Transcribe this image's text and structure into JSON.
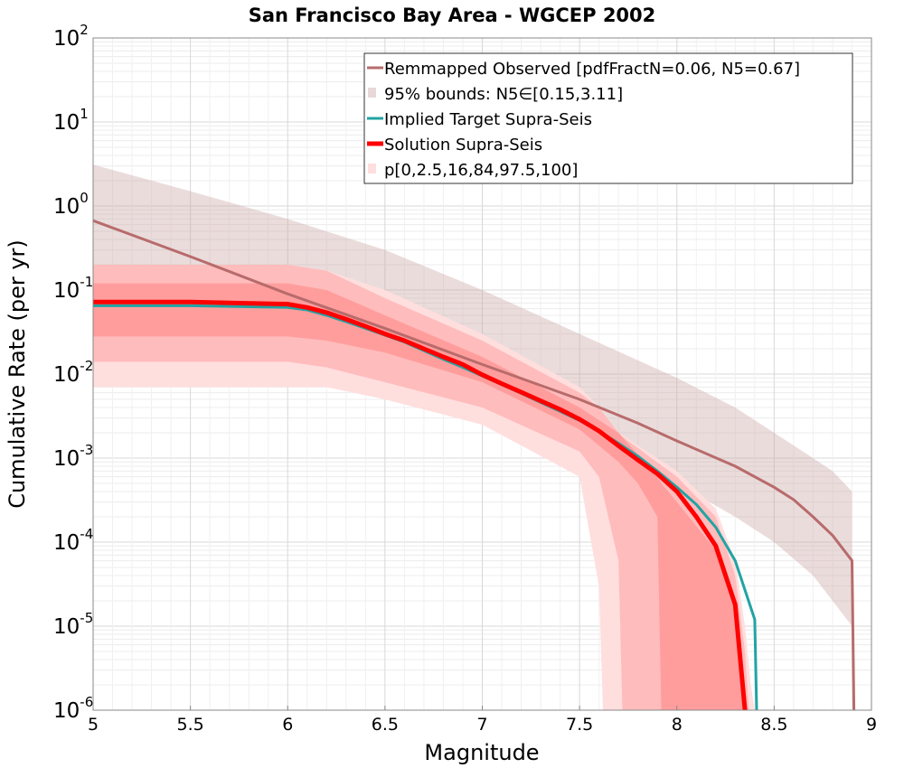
{
  "chart_data": {
    "type": "line",
    "title": "San Francisco Bay Area - WGCEP 2002",
    "xlabel": "Magnitude",
    "ylabel": "Cumulative Rate (per yr)",
    "xlim": [
      5,
      9
    ],
    "ylim": [
      1e-06,
      100
    ],
    "y_scale": "log",
    "grid": true,
    "legend_position": "top-right",
    "x_ticks": [
      "5",
      "5.5",
      "6",
      "6.5",
      "7",
      "7.5",
      "8",
      "8.5",
      "9"
    ],
    "y_ticks": [
      {
        "base": "10",
        "exp": "-6",
        "value": 1e-06
      },
      {
        "base": "10",
        "exp": "-5",
        "value": 1e-05
      },
      {
        "base": "10",
        "exp": "-4",
        "value": 0.0001
      },
      {
        "base": "10",
        "exp": "-3",
        "value": 0.001
      },
      {
        "base": "10",
        "exp": "-2",
        "value": 0.01
      },
      {
        "base": "10",
        "exp": "-1",
        "value": 0.1
      },
      {
        "base": "10",
        "exp": "0",
        "value": 1
      },
      {
        "base": "10",
        "exp": "1",
        "value": 10
      },
      {
        "base": "10",
        "exp": "2",
        "value": 100
      }
    ],
    "legend": [
      {
        "label": "Remmapped Observed [pdfFractN=0.06, N5=0.67]",
        "kind": "line",
        "color": "#b86b6b"
      },
      {
        "label": "95% bounds: N5∈[0.15,3.11]",
        "kind": "patch",
        "color": "#e8d8d8"
      },
      {
        "label": "Implied Target Supra-Seis",
        "kind": "line",
        "color": "#22a3a3"
      },
      {
        "label": "Solution Supra-Seis",
        "kind": "line",
        "color": "#ff0000"
      },
      {
        "label": "p[0,2.5,16,84,97.5,100]",
        "kind": "patch",
        "color": "#ffdede"
      }
    ],
    "bands": [
      {
        "name": "95% bounds: N5∈[0.15,3.11]",
        "color": "#cca8a8",
        "opacity": 0.4,
        "x": [
          5.0,
          5.5,
          6.0,
          6.5,
          7.0,
          7.5,
          8.0,
          8.3,
          8.5,
          8.7,
          8.8,
          8.9
        ],
        "upper": [
          3.11,
          1.5,
          0.7,
          0.3,
          0.1,
          0.03,
          0.009,
          0.004,
          0.002,
          0.001,
          0.0007,
          0.0004
        ],
        "lower": [
          0.15,
          0.06,
          0.03,
          0.012,
          0.005,
          0.0018,
          0.0005,
          0.0002,
          0.0001,
          4e-05,
          2e-05,
          1e-05
        ]
      },
      {
        "name": "p 0-100",
        "color": "#ffdede",
        "opacity": 1,
        "x": [
          5.0,
          5.5,
          6.0,
          6.2,
          6.5,
          7.0,
          7.5,
          7.6,
          7.62,
          7.7,
          8.0,
          8.2,
          8.3,
          8.35,
          8.38,
          8.4
        ],
        "upper": [
          0.2,
          0.2,
          0.2,
          0.17,
          0.1,
          0.03,
          0.007,
          0.004,
          0.0035,
          0.002,
          0.0007,
          0.00025,
          6e-05,
          1e-05,
          2e-06,
          1e-06
        ],
        "lower": [
          0.007,
          0.007,
          0.007,
          0.007,
          0.005,
          0.0025,
          0.0006,
          3e-05,
          1e-06,
          1e-06,
          1e-06,
          1e-06,
          1e-06,
          1e-06,
          1e-06,
          1e-06
        ]
      },
      {
        "name": "p 2.5-97.5",
        "color": "#ffbcbc",
        "opacity": 1,
        "x": [
          5.0,
          5.5,
          6.0,
          6.2,
          6.5,
          7.0,
          7.5,
          7.6,
          7.7,
          7.72,
          8.0,
          8.2,
          8.3,
          8.35,
          8.37
        ],
        "upper": [
          0.2,
          0.2,
          0.2,
          0.17,
          0.08,
          0.025,
          0.006,
          0.004,
          0.002,
          0.0018,
          0.0006,
          0.0002,
          4e-05,
          5e-06,
          1e-06
        ],
        "lower": [
          0.014,
          0.014,
          0.014,
          0.012,
          0.008,
          0.004,
          0.0012,
          0.0006,
          6e-05,
          1e-06,
          1e-06,
          1e-06,
          1e-06,
          1e-06,
          1e-06
        ]
      },
      {
        "name": "p 16-84",
        "color": "#ff9d9d",
        "opacity": 1,
        "x": [
          5.0,
          5.5,
          6.0,
          6.2,
          6.5,
          7.0,
          7.5,
          7.7,
          7.8,
          7.9,
          7.92,
          8.0,
          8.2,
          8.3,
          8.35
        ],
        "upper": [
          0.12,
          0.12,
          0.12,
          0.1,
          0.05,
          0.016,
          0.004,
          0.002,
          0.0011,
          0.0006,
          0.0005,
          0.0003,
          8e-05,
          1.5e-05,
          1e-06
        ],
        "lower": [
          0.028,
          0.028,
          0.028,
          0.025,
          0.018,
          0.008,
          0.0022,
          0.0009,
          0.0005,
          0.0002,
          1e-06,
          1e-06,
          1e-06,
          1e-06,
          1e-06
        ]
      }
    ],
    "series": [
      {
        "name": "Remmapped Observed [pdfFractN=0.06, N5=0.67]",
        "color": "#b86b6b",
        "width": 3,
        "x": [
          5.0,
          5.5,
          6.0,
          6.5,
          7.0,
          7.5,
          7.8,
          8.0,
          8.3,
          8.5,
          8.6,
          8.7,
          8.8,
          8.9,
          8.91
        ],
        "y": [
          0.67,
          0.25,
          0.09,
          0.035,
          0.013,
          0.005,
          0.0026,
          0.0016,
          0.0008,
          0.00045,
          0.00032,
          0.0002,
          0.00012,
          6e-05,
          1e-06
        ]
      },
      {
        "name": "Implied Target Supra-Seis",
        "color": "#22a3a3",
        "width": 3,
        "x": [
          5.0,
          5.5,
          6.0,
          6.1,
          6.2,
          6.3,
          6.4,
          6.5,
          6.6,
          6.7,
          6.8,
          6.9,
          7.0,
          7.1,
          7.2,
          7.3,
          7.4,
          7.5,
          7.6,
          7.7,
          7.8,
          7.9,
          8.0,
          8.1,
          8.2,
          8.3,
          8.4,
          8.41
        ],
        "y": [
          0.065,
          0.065,
          0.062,
          0.058,
          0.05,
          0.042,
          0.035,
          0.029,
          0.024,
          0.019,
          0.015,
          0.012,
          0.0095,
          0.0075,
          0.0059,
          0.0046,
          0.0036,
          0.0028,
          0.0021,
          0.0015,
          0.00105,
          0.0007,
          0.00045,
          0.00028,
          0.00015,
          6e-05,
          1.2e-05,
          1e-06
        ]
      },
      {
        "name": "Solution Supra-Seis",
        "color": "#ff0000",
        "width": 5,
        "x": [
          5.0,
          5.5,
          6.0,
          6.1,
          6.2,
          6.3,
          6.4,
          6.5,
          6.6,
          6.7,
          6.8,
          6.9,
          7.0,
          7.1,
          7.2,
          7.3,
          7.4,
          7.5,
          7.6,
          7.7,
          7.8,
          7.9,
          8.0,
          8.1,
          8.2,
          8.3,
          8.35
        ],
        "y": [
          0.072,
          0.072,
          0.068,
          0.062,
          0.054,
          0.045,
          0.037,
          0.03,
          0.025,
          0.02,
          0.016,
          0.013,
          0.0098,
          0.0077,
          0.0061,
          0.0048,
          0.0038,
          0.0029,
          0.0021,
          0.0014,
          0.00095,
          0.00065,
          0.0004,
          0.0002,
          9e-05,
          1.8e-05,
          1e-06
        ]
      }
    ]
  }
}
